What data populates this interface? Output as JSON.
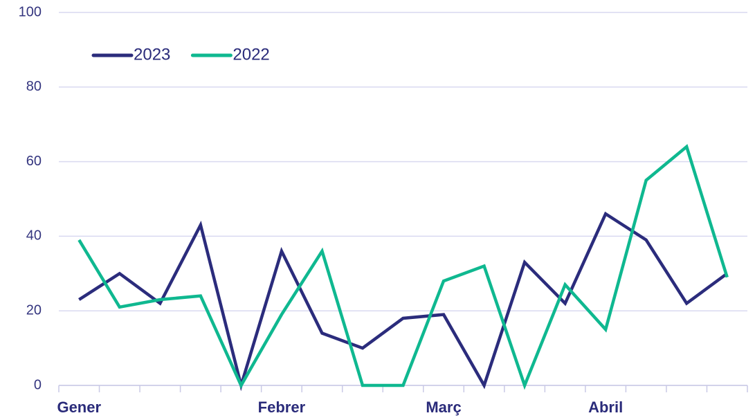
{
  "chart_data": {
    "type": "line",
    "categories": [
      "Gener",
      null,
      null,
      null,
      null,
      "Febrer",
      null,
      null,
      null,
      "Març",
      null,
      null,
      null,
      "Abril",
      null,
      null,
      null
    ],
    "series": [
      {
        "name": "2023",
        "color": "#2b2c7c",
        "values": [
          23,
          30,
          22,
          43,
          0,
          36,
          14,
          10,
          18,
          19,
          0,
          33,
          22,
          46,
          39,
          22,
          30
        ]
      },
      {
        "name": "2022",
        "color": "#0fb890",
        "values": [
          39,
          21,
          23,
          24,
          0,
          19,
          36,
          0,
          0,
          28,
          32,
          0,
          27,
          15,
          55,
          64,
          29
        ]
      }
    ],
    "ylim": [
      0,
      100
    ],
    "yticks": [
      0,
      20,
      40,
      60,
      80,
      100
    ],
    "grid": true,
    "legend": "upper left"
  }
}
